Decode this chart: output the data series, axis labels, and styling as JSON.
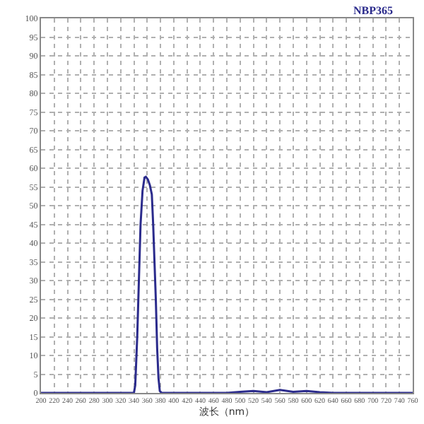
{
  "chart_data": {
    "type": "line",
    "title": "NBP365",
    "xlabel": "波长（nm）",
    "x": [
      200,
      340,
      342,
      345,
      347,
      350,
      353,
      356,
      358,
      361,
      364,
      367,
      369,
      371,
      373,
      375,
      377,
      379,
      382,
      480,
      500,
      520,
      540,
      560,
      580,
      600,
      620,
      640,
      760
    ],
    "series": [
      {
        "color": "#2b2b8c",
        "values": [
          0,
          0,
          2,
          15,
          27,
          45,
          54,
          57.5,
          57.7,
          57,
          55.5,
          53,
          45,
          35,
          25,
          12,
          4,
          0.5,
          0,
          0,
          0.3,
          0.5,
          0.2,
          0.8,
          0.3,
          0.5,
          0.2,
          0,
          0
        ]
      }
    ],
    "xlim": [
      200,
      760
    ],
    "xticks": [
      200,
      220,
      240,
      260,
      280,
      300,
      320,
      340,
      360,
      380,
      400,
      420,
      440,
      460,
      480,
      500,
      520,
      540,
      560,
      580,
      600,
      620,
      640,
      660,
      680,
      700,
      720,
      740,
      760
    ],
    "ylim": [
      0,
      100
    ],
    "yticks": [
      0,
      5,
      10,
      15,
      20,
      25,
      30,
      35,
      40,
      45,
      50,
      55,
      60,
      65,
      70,
      75,
      80,
      85,
      90,
      95,
      100
    ],
    "grid": true,
    "marker": "none",
    "line_style": "solid"
  }
}
